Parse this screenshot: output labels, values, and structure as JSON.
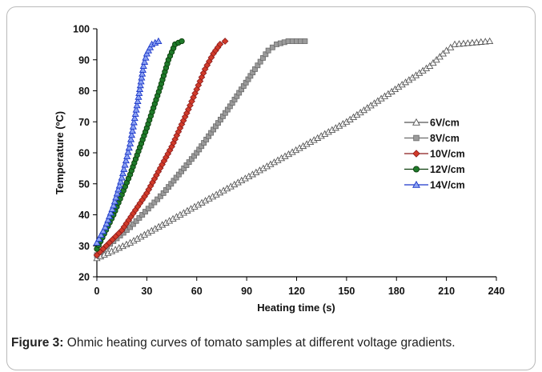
{
  "figure": {
    "caption_label": "Figure 3:",
    "caption_text": "Ohmic heating curves of tomato samples at different voltage gradients."
  },
  "chart_data": {
    "type": "line",
    "xlabel": "Heating time (s)",
    "ylabel": "Temperature (ºC)",
    "xlim": [
      0,
      240
    ],
    "ylim": [
      20,
      100
    ],
    "xticks": [
      0,
      30,
      60,
      90,
      120,
      150,
      180,
      210,
      240
    ],
    "yticks": [
      20,
      30,
      40,
      50,
      60,
      70,
      80,
      90,
      100
    ],
    "grid": false,
    "legend_position": "right",
    "series": [
      {
        "name": "6V/cm",
        "marker": "triangle",
        "stroke": "#555555",
        "fill": "#ffffff",
        "x": [
          0,
          20,
          50,
          100,
          150,
          200,
          210,
          215,
          236
        ],
        "y": [
          26,
          31,
          40,
          55,
          70,
          88,
          93,
          95,
          96
        ]
      },
      {
        "name": "8V/cm",
        "marker": "square",
        "stroke": "#6b6b6b",
        "fill": "#9b9b9b",
        "x": [
          0,
          20,
          40,
          60,
          80,
          95,
          103,
          108,
          115,
          125
        ],
        "y": [
          27,
          36,
          47,
          60,
          75,
          87,
          93,
          95,
          96,
          96
        ]
      },
      {
        "name": "10V/cm",
        "marker": "diamond",
        "stroke": "#8b1a1a",
        "fill": "#d13b2a",
        "x": [
          0,
          15,
          30,
          45,
          55,
          65,
          70,
          74,
          77
        ],
        "y": [
          27,
          35,
          47,
          62,
          74,
          87,
          92,
          95,
          96
        ]
      },
      {
        "name": "12V/cm",
        "marker": "circle",
        "stroke": "#0b3d0b",
        "fill": "#1f7a2a",
        "x": [
          0,
          10,
          20,
          30,
          38,
          43,
          47,
          51
        ],
        "y": [
          29,
          40,
          53,
          68,
          81,
          90,
          95,
          96
        ]
      },
      {
        "name": "14V/cm",
        "marker": "triangle",
        "stroke": "#1a36c9",
        "fill": "#8da3f2",
        "x": [
          0,
          5,
          10,
          15,
          20,
          25,
          28,
          30,
          33,
          37
        ],
        "y": [
          31,
          36,
          43,
          52,
          63,
          78,
          88,
          92,
          95,
          96
        ]
      }
    ]
  }
}
